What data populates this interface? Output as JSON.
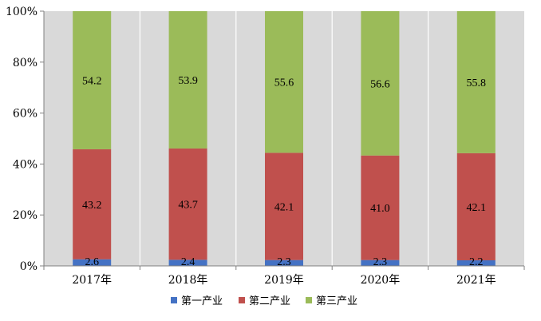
{
  "chart_data": {
    "type": "bar",
    "stacked": true,
    "percent": true,
    "categories": [
      "2017年",
      "2018年",
      "2019年",
      "2020年",
      "2021年"
    ],
    "series": [
      {
        "name": "第一产业",
        "values": [
          2.6,
          2.4,
          2.3,
          2.3,
          2.2
        ],
        "color": "#4472C4"
      },
      {
        "name": "第二产业",
        "values": [
          43.2,
          43.7,
          42.1,
          41.0,
          42.1
        ],
        "color": "#C0504D"
      },
      {
        "name": "第三产业",
        "values": [
          54.2,
          53.9,
          55.6,
          56.6,
          55.8
        ],
        "color": "#9BBB59"
      }
    ],
    "yticks": [
      "0%",
      "20%",
      "40%",
      "60%",
      "80%",
      "100%"
    ],
    "ylim": [
      0,
      100
    ],
    "plot_background": "#D9D9D9",
    "grid": false,
    "legend_position": "bottom"
  }
}
